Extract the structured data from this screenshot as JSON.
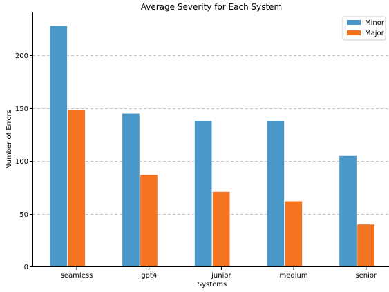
{
  "chart_data": {
    "type": "bar",
    "title": "Average Severity for Each System",
    "xlabel": "Systems",
    "ylabel": "Number of Errors",
    "categories": [
      "seamless",
      "gpt4",
      "junior",
      "medium",
      "senior"
    ],
    "series": [
      {
        "name": "Minor",
        "color": "#4a98c9",
        "values": [
          228,
          145,
          138,
          138,
          105
        ]
      },
      {
        "name": "Major",
        "color": "#f47320",
        "values": [
          148,
          87,
          71,
          62,
          40
        ]
      }
    ],
    "ylim": [
      0,
      240
    ],
    "yticks": [
      0,
      50,
      100,
      150,
      200
    ],
    "grid": "y-dashed",
    "legend": "top-right"
  }
}
